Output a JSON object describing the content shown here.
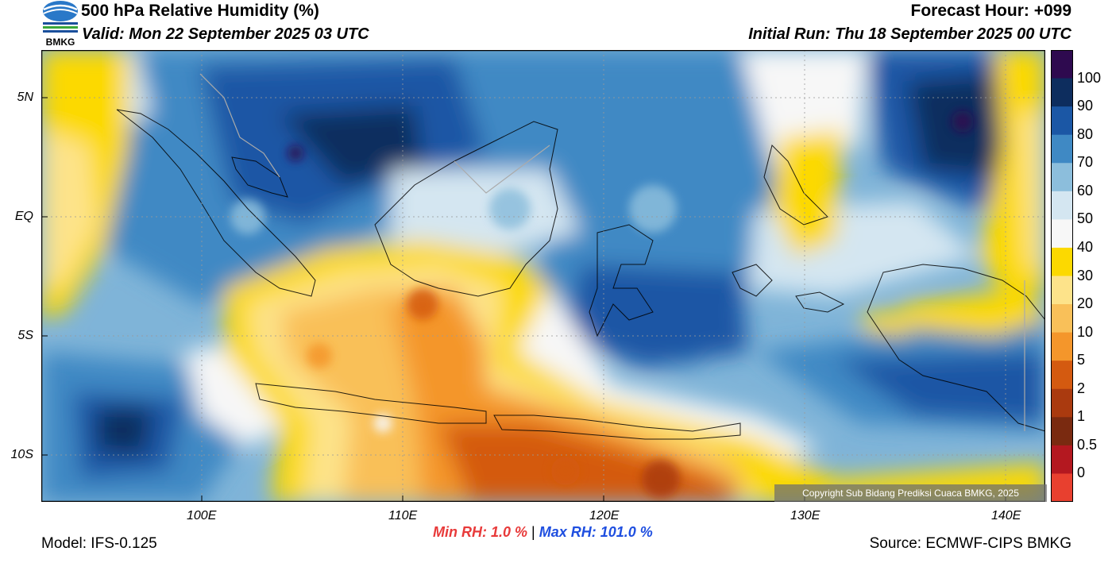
{
  "header": {
    "title": "500 hPa Relative Humidity (%)",
    "valid": "Valid: Mon 22 September 2025 03 UTC",
    "forecast_hour": "Forecast Hour: +099",
    "initial_run": "Initial Run: Thu 18 September 2025 00 UTC"
  },
  "logo": {
    "text": "BMKG",
    "colors": [
      "#2a78c8",
      "#3aa83a",
      "#1a4f9c"
    ]
  },
  "map": {
    "lat_labels": [
      "5N",
      "EQ",
      "5S",
      "10S"
    ],
    "lon_labels": [
      "100E",
      "110E",
      "120E",
      "130E",
      "140E"
    ],
    "lat_values": [
      5,
      0,
      -5,
      -10
    ],
    "lon_values": [
      100,
      110,
      120,
      130,
      140
    ],
    "extent": {
      "lon_min": 92,
      "lon_max": 142,
      "lat_min": -12,
      "lat_max": 7
    },
    "copyright": "Copyright Sub Bidang Prediksi Cuaca BMKG, 2025"
  },
  "colorbar": {
    "labels": [
      "100",
      "90",
      "80",
      "70",
      "60",
      "50",
      "40",
      "30",
      "20",
      "10",
      "5",
      "2",
      "1",
      "0.5",
      "0"
    ],
    "colors": [
      "#2e0a4f",
      "#0d2d5e",
      "#1b57a5",
      "#3f89c4",
      "#8cbedc",
      "#d4e6f1",
      "#f7f7f7",
      "#fcd900",
      "#fde38a",
      "#f9c059",
      "#f4962b",
      "#d45a10",
      "#aa3a0f",
      "#7a2a10",
      "#b41820",
      "#e8402f"
    ]
  },
  "stats": {
    "min_rh": "Min RH:   1.0 %",
    "separator": "|",
    "max_rh": "Max RH: 101.0 %"
  },
  "footer": {
    "model": "Model: IFS-0.125",
    "source": "Source: ECMWF-CIPS BMKG"
  }
}
